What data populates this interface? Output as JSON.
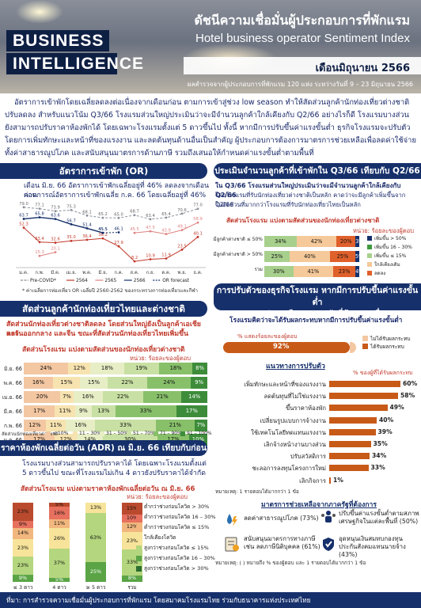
{
  "header": {
    "brand_line1": "BUSINESS",
    "brand_line2": "INTELLIGENCE",
    "title_th": "ดัชนีความเชื่อมั่นผู้ประกอบการที่พักแรม",
    "title_en": "Hotel business operator Sentiment Index",
    "month": "เดือนมิถุนายน 2566",
    "survey": "ผลสำรวจจากผู้ประกอบการที่พักแรม 120 แห่ง ระหว่างวันที่ 9 – 23 มิถุนายน 2566"
  },
  "summary": "อัตราการเข้าพักโดยเฉลี่ยลดลงต่อเนื่องจากเดือนก่อน ตามการเข้าสู่ช่วง low season ทำให้สัดส่วนลูกค้านักท่องเที่ยวต่างชาติปรับลดลง สำหรับแนวโน้ม Q3/66 โรงแรมส่วนใหญ่ประเมินว่าจะมีจำนวนลูกค้าใกล้เคียงกับ Q2/66 อย่างไรก็ดี โรงแรมบางส่วนยังสามารถปรับราคาห้องพักได้ โดยเฉพาะโรงแรมตั้งแต่ 5 ดาวขึ้นไป ทั้งนี้ หากมีการปรับขึ้นค่าแรงขั้นต่ำ ธุรกิจโรงแรมจะปรับตัวโดยการเพิ่มทักษะและหน้าที่ของแรงงาน และลดต้นทุนด้านอื่นเป็นสำคัญ ผู้ประกอบการต้องการมาตรการช่วยเหลือเพื่อลดค่าใช้จ่ายทั้งค่าสาธารณูปโภค และสนับสนุนมาตรการด้านภาษี รวมถึงเสนอให้กำหนดค่าแรงขั้นต่ำตามพื้นที่",
  "occupancy": {
    "header": "อัตราการเข้าพัก (OR)",
    "text_line1": "เดือน มิ.ย. 66 อัตราการเข้าพักเฉลี่ยอยู่ที่ 46% ลดลงจากเดือนก่อน",
    "text_line2": "คาดการณ์อัตราการเข้าพักเฉลี่ย ก.ค. 66 โดยเฉลี่ยอยู่ที่ 46%",
    "note": "* ค่าเฉลี่ยการท่องเที่ยว OR เฉลี่ยปี 2560-2562 ของกระทรวงการท่องเที่ยวและกีฬา",
    "chart_data": {
      "type": "line",
      "categories": [
        "ม.ค.",
        "ก.พ.",
        "มี.ค.",
        "เม.ย.",
        "พ.ค.",
        "มิ.ย.",
        "ก.ค.",
        "ส.ค.",
        "ก.ย.",
        "ต.ค.",
        "พ.ย.",
        "ธ.ค."
      ],
      "series": [
        {
          "name": "Pre-COVID*",
          "color": "#8a8f99",
          "values": [
            79.0,
            77.1,
            73.9,
            75.3,
            68.1,
            65.2,
            65.0,
            68.7,
            63.4,
            65.4,
            70.6,
            77.0
          ]
        },
        {
          "name": "2564",
          "color": "#c0392b",
          "values": [
            52.3,
            33.4,
            32.6,
            35.0,
            36.4,
            38.2,
            27.9,
            8.2,
            10.9,
            11.9,
            23.5,
            40.1
          ]
        },
        {
          "name": "2565",
          "color": "#e08080",
          "values": [
            null,
            15.3,
            20.1,
            null,
            null,
            null,
            null,
            45.5,
            47.5,
            43.9,
            49.1,
            58.9
          ]
        },
        {
          "name": "2566",
          "color": "#16306b",
          "values": [
            63.7,
            65.8,
            63.6,
            56.7,
            51.4,
            45.5,
            null,
            null,
            null,
            null,
            null,
            null
          ]
        },
        {
          "name": "OR forecast",
          "color": "#16306b",
          "values": [
            null,
            null,
            null,
            null,
            null,
            45.5,
            46.1,
            null,
            null,
            null,
            null,
            null
          ]
        }
      ],
      "labels_extra": [
        "67.6",
        "54.3",
        "46.5",
        "62.6",
        "8.0",
        "24.9",
        "17.1",
        "35.8",
        "66.2"
      ],
      "ylim": [
        0,
        85
      ]
    }
  },
  "foreign_share": {
    "header": "สัดส่วนลูกค้านักท่องเที่ยวไทยและต่างชาติ",
    "text_line1": "สัดส่วนนักท่องเที่ยวต่างชาติลดลง โดยส่วนใหญ่ยังเป็นลูกค้าเอเชียและ",
    "text_line2": "ตะวันออกกลาง และจีน ขณะที่สัดส่วนนักท่องเที่ยวไทยเพิ่มขึ้น",
    "sub_header": "สัดส่วนโรงแรม แบ่งตามสัดส่วนของนักท่องเที่ยวต่างชาติ",
    "unit": "หน่วย: ร้อยละของผู้ตอบ",
    "axis_label": "สัดส่วนนักท่องเที่ยวต่างชาติ",
    "chart_data": {
      "type": "bar",
      "categories": [
        "มิ.ย. 66",
        "พ.ค. 66",
        "เม.ย. 66",
        "มี.ค. 66",
        "ก.พ. 66",
        "ม.ค. 66"
      ],
      "series": [
        {
          "name": "≤ 10%",
          "color": "#f3c7a2",
          "values": [
            24,
            16,
            20,
            17,
            12,
            17
          ]
        },
        {
          "name": "11 – 30%",
          "color": "#f7e3b0",
          "values": [
            12,
            15,
            7,
            11,
            11,
            12
          ]
        },
        {
          "name": "31 – 50%",
          "color": "#e7eec5",
          "values": [
            18,
            15,
            16,
            9,
            16,
            14
          ]
        },
        {
          "name": "51 – 70%",
          "color": "#c8e0a3",
          "values": [
            19,
            22,
            22,
            13,
            33,
            30
          ]
        },
        {
          "name": "71 – 90%",
          "color": "#88c06a",
          "values": [
            18,
            24,
            21,
            33,
            21,
            17
          ]
        },
        {
          "name": "91 – 100%",
          "color": "#3d8c3a",
          "values": [
            8,
            9,
            14,
            17,
            7,
            10
          ]
        }
      ]
    }
  },
  "adr": {
    "header": "ราคาห้องพักเฉลี่ยต่อวัน (ADR) ณ มิ.ย. 66 เทียบกับก่อน COVID-19",
    "text_line1": "โรงแรมบางส่วนสามารถปรับราคาได้ โดยเฉพาะโรงแรมตั้งแต่",
    "text_line2": "5 ดาวขึ้นไป ขณะที่โรงแรมไม่เกิน 4 ดาวยังปรับราคาได้จำกัด",
    "sub_header": "สัดส่วนโรงแรม แบ่งตามราคาห้องพักเฉลี่ยต่อวัน ณ มิ.ย. 66",
    "unit": "หน่วย: ร้อยละของผู้ตอบ",
    "chart_data": {
      "type": "bar",
      "categories": [
        "≤ 3 ดาว",
        "4 ดาว",
        "≥ 5 ดาว",
        "รวม"
      ],
      "series": [
        {
          "name": "ต่ำกว่าช่วงก่อนโควิด > 30%",
          "color": "#b94a2e",
          "values": [
            23,
            5,
            0,
            15
          ]
        },
        {
          "name": "ต่ำกว่าช่วงก่อนโควิด 16 – 30%",
          "color": "#e7705e",
          "values": [
            9,
            16,
            0,
            10
          ]
        },
        {
          "name": "ต่ำกว่าช่วงก่อนโควิด ≤ 15%",
          "color": "#f2b77e",
          "values": [
            14,
            11,
            0,
            12
          ]
        },
        {
          "name": "ใกล้เคียงโควิด",
          "color": "#f7e49a",
          "values": [
            23,
            26,
            13,
            23
          ]
        },
        {
          "name": "สูงกว่าช่วงก่อนโควิด ≤ 15%",
          "color": "#b4d67e",
          "values": [
            23,
            37,
            63,
            33
          ]
        },
        {
          "name": "สูงกว่าช่วงก่อนโควิด 16 – 30%",
          "color": "#5aa446",
          "values": [
            9,
            5,
            25,
            8
          ]
        },
        {
          "name": "สูงกว่าช่วงก่อนโควิด > 30%",
          "color": "#2b6e2f",
          "values": [
            0,
            0,
            0,
            0
          ]
        }
      ],
      "top_labels": [
        "23%",
        "5%",
        "",
        "3%"
      ]
    }
  },
  "q3_outlook": {
    "header": "ประเมินจำนวนลูกค้าที่เข้าพักใน Q3/66 เทียบกับ Q2/66",
    "text_line1": "ใน Q3/66 โรงแรมส่วนใหญ่ประเมินว่าจะมีจำนวนลูกค้าใกล้เคียงกับ Q2/66",
    "text_line2": "โดยโรงแรมที่รับนักท่องเที่ยวต่างชาติเป็นหลัก คาดว่าจะมีลูกค้าเพิ่มขึ้นจาก Q2/66",
    "text_line3": "ในสัดส่วนที่มากกว่าโรงแรมที่รับนักท่องเที่ยวไทยเป็นหลัก",
    "sub_header": "สัดส่วนโรงแรม แบ่งตามสัดส่วนของนักท่องเที่ยวต่างชาติ",
    "unit": "หน่วย: ร้อยละของผู้ตอบ",
    "chart_data": {
      "type": "bar",
      "categories": [
        "มีลูกค้าต่างชาติ ≤ 50%",
        "มีลูกค้าต่างชาติ > 50%",
        "รวม"
      ],
      "series": [
        {
          "name": "เพิ่มขึ้น > 50%",
          "color": "#16306b",
          "values": [
            0,
            0,
            0
          ]
        },
        {
          "name": "เพิ่มขึ้น 16 – 30%",
          "color": "#3f9a3f",
          "values": [
            0,
            0,
            0
          ]
        },
        {
          "name": "เพิ่มขึ้น ≤ 15%",
          "color": "#a8d08d",
          "values": [
            34,
            25,
            30
          ]
        },
        {
          "name": "ใกล้เคียงเดิม",
          "color": "#f5c99a",
          "values": [
            42,
            40,
            41
          ]
        },
        {
          "name": "ลดลง",
          "color": "#e0602b",
          "values": [
            20,
            25,
            23
          ]
        }
      ],
      "extra_labels": [
        [
          "34%",
          "42%",
          "20%",
          "3%"
        ],
        [
          "25%",
          "40%",
          "25%",
          "5%"
        ],
        [
          "30%",
          "41%",
          "23%",
          "4%"
        ]
      ]
    }
  },
  "wage": {
    "header_line1": "การปรับตัวของธุรกิจโรงแรม หากมีการปรับขึ้นค่าแรงขั้นต่ำ",
    "header_line2": "และมาตรการช่วยเหลือจากภาครัฐที่ต้องการเพื่อลดผลกระทบ",
    "question": "โรงแรมคิดว่าจะได้รับผลกระทบหากมีการปรับขึ้นค่าแรงขั้นต่ำ",
    "pct_label": "% แสดงร้อยละของผู้ตอบ",
    "impact_value": "92%",
    "legend_no": "ไม่ได้รับผลกระทบ",
    "legend_yes": "ได้รับผลกระทบ",
    "measures_title": "แนวทางการปรับตัว",
    "measures_unit": "% ของผู้ที่ได้รับผลกระทบ",
    "measures": [
      {
        "label": "เพิ่มทักษะและหน้าที่ของแรงงาน",
        "value": 60
      },
      {
        "label": "ลดต้นทุนที่ไม่ใช่แรงงาน",
        "value": 58
      },
      {
        "label": "ขึ้นราคาห้องพัก",
        "value": 49
      },
      {
        "label": "เปลี่ยนรูปแบบการจ้างงาน",
        "value": 40
      },
      {
        "label": "ใช้เทคโนโลยีทดแทนแรงงาน",
        "value": 39
      },
      {
        "label": "เลิกจ้างหน้างานบางส่วน",
        "value": 35
      },
      {
        "label": "ปรับสวัสดิการ",
        "value": 34
      },
      {
        "label": "ชะลอการลงทุนโครงการใหม่",
        "value": 33
      },
      {
        "label": "เลิกกิจการ",
        "value": 1
      }
    ],
    "measures_note": "หมายเหตุ: 1 รายตอบได้มากกว่า 1 ข้อ",
    "help_title": "มาตรการช่วยเหลือจากภาครัฐที่ต้องการ",
    "help_items": [
      {
        "text1": "ลดค่าสาธารณูปโภค (73%)",
        "text2": ""
      },
      {
        "text1": "ปรับขึ้นค่าแรงขั้นต่ำตามสภาพ",
        "text2": "เศรษฐกิจในแต่ละพื้นที่ (50%)"
      },
      {
        "text1": "สนับสนุนมาตรการทางภาษี",
        "text2": "เช่น ลดภาษีนิติบุคคล (61%)"
      },
      {
        "text1": "อุดหนุนเงินสมทบกองทุน",
        "text2": "ประกันสังคมแทนนายจ้าง (43%)"
      }
    ],
    "help_note": "หมายเหตุ: ( ) หมายถึง % ของผู้ตอบ และ 1 รายตอบได้มากกว่า 1 ข้อ"
  },
  "footer": "ที่มา: การสำรวจความเชื่อมั่นผู้ประกอบการที่พักแรม โดยสมาคมโรงแรมไทย ร่วมกับธนาคารแห่งประเทศไทย"
}
